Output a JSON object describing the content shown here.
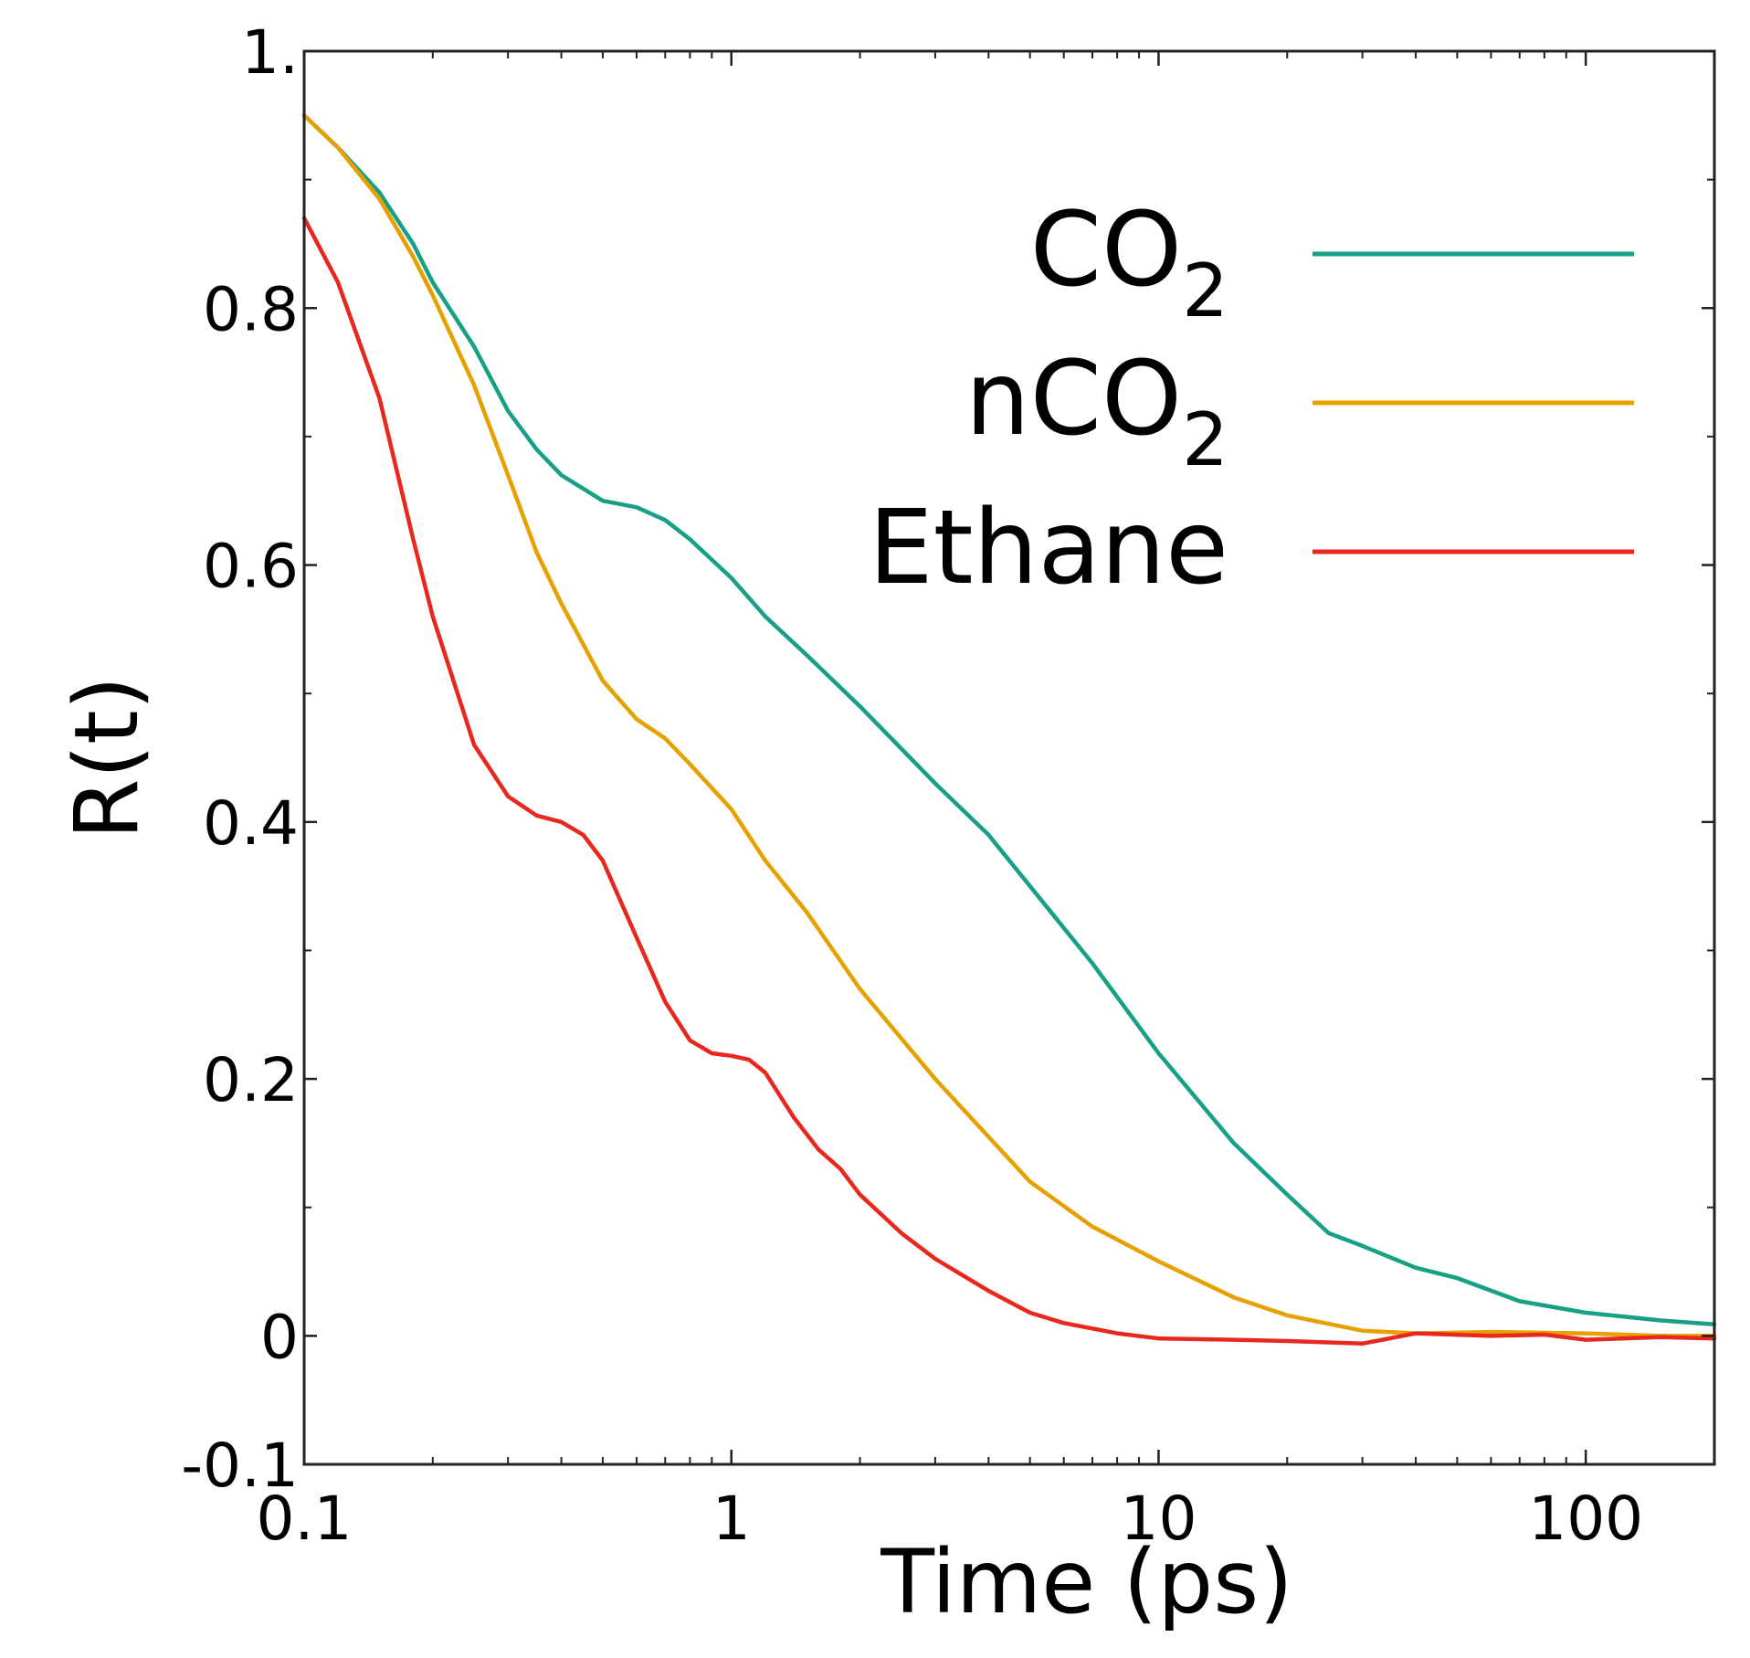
{
  "chart_data": {
    "type": "line",
    "title": "",
    "xlabel": "Time (ps)",
    "ylabel": "R(t)",
    "xscale": "log",
    "xlim": [
      0.1,
      200
    ],
    "ylim": [
      -0.1,
      1.0
    ],
    "x_ticks": [
      0.1,
      1,
      10,
      100
    ],
    "x_tick_labels": [
      "0.1",
      "1",
      "10",
      "100"
    ],
    "y_ticks": [
      -0.1,
      0,
      0.2,
      0.4,
      0.6,
      0.8,
      1.0
    ],
    "y_tick_labels": [
      "-0.1",
      "0",
      "0.2",
      "0.4",
      "0.6",
      "0.8",
      "1."
    ],
    "grid": false,
    "legend_position": "top-right",
    "series": [
      {
        "name": "CO",
        "name_subscript": "2",
        "color": "#16a085",
        "points": [
          [
            0.1,
            0.95
          ],
          [
            0.12,
            0.925
          ],
          [
            0.15,
            0.89
          ],
          [
            0.18,
            0.85
          ],
          [
            0.2,
            0.82
          ],
          [
            0.25,
            0.77
          ],
          [
            0.3,
            0.72
          ],
          [
            0.35,
            0.69
          ],
          [
            0.4,
            0.67
          ],
          [
            0.5,
            0.65
          ],
          [
            0.6,
            0.645
          ],
          [
            0.7,
            0.635
          ],
          [
            0.8,
            0.62
          ],
          [
            1.0,
            0.59
          ],
          [
            1.2,
            0.56
          ],
          [
            1.5,
            0.53
          ],
          [
            2.0,
            0.49
          ],
          [
            3.0,
            0.43
          ],
          [
            4.0,
            0.39
          ],
          [
            5.0,
            0.35
          ],
          [
            7.0,
            0.29
          ],
          [
            10.0,
            0.22
          ],
          [
            15.0,
            0.15
          ],
          [
            20.0,
            0.11
          ],
          [
            25.0,
            0.08
          ],
          [
            30.0,
            0.07
          ],
          [
            40.0,
            0.053
          ],
          [
            50.0,
            0.045
          ],
          [
            70.0,
            0.027
          ],
          [
            100.0,
            0.018
          ],
          [
            150.0,
            0.012
          ],
          [
            200.0,
            0.009
          ]
        ]
      },
      {
        "name": "nCO",
        "name_subscript": "2",
        "color": "#e6a100",
        "points": [
          [
            0.1,
            0.95
          ],
          [
            0.12,
            0.925
          ],
          [
            0.15,
            0.885
          ],
          [
            0.18,
            0.84
          ],
          [
            0.2,
            0.81
          ],
          [
            0.25,
            0.74
          ],
          [
            0.3,
            0.67
          ],
          [
            0.35,
            0.61
          ],
          [
            0.4,
            0.57
          ],
          [
            0.5,
            0.51
          ],
          [
            0.6,
            0.48
          ],
          [
            0.7,
            0.465
          ],
          [
            0.8,
            0.445
          ],
          [
            1.0,
            0.41
          ],
          [
            1.2,
            0.37
          ],
          [
            1.5,
            0.33
          ],
          [
            2.0,
            0.27
          ],
          [
            3.0,
            0.2
          ],
          [
            5.0,
            0.12
          ],
          [
            7.0,
            0.085
          ],
          [
            10.0,
            0.058
          ],
          [
            15.0,
            0.03
          ],
          [
            20.0,
            0.016
          ],
          [
            30.0,
            0.004
          ],
          [
            40.0,
            0.002
          ],
          [
            60.0,
            0.003
          ],
          [
            100.0,
            0.002
          ],
          [
            150.0,
            0.0
          ],
          [
            200.0,
            0.0
          ]
        ]
      },
      {
        "name": "Ethane",
        "name_subscript": "",
        "color": "#e8281e",
        "points": [
          [
            0.1,
            0.87
          ],
          [
            0.12,
            0.82
          ],
          [
            0.15,
            0.73
          ],
          [
            0.18,
            0.62
          ],
          [
            0.2,
            0.56
          ],
          [
            0.25,
            0.46
          ],
          [
            0.3,
            0.42
          ],
          [
            0.35,
            0.405
          ],
          [
            0.4,
            0.4
          ],
          [
            0.45,
            0.39
          ],
          [
            0.5,
            0.37
          ],
          [
            0.6,
            0.31
          ],
          [
            0.7,
            0.26
          ],
          [
            0.8,
            0.23
          ],
          [
            0.9,
            0.22
          ],
          [
            1.0,
            0.218
          ],
          [
            1.1,
            0.215
          ],
          [
            1.2,
            0.205
          ],
          [
            1.4,
            0.17
          ],
          [
            1.6,
            0.145
          ],
          [
            1.8,
            0.13
          ],
          [
            2.0,
            0.11
          ],
          [
            2.5,
            0.08
          ],
          [
            3.0,
            0.06
          ],
          [
            4.0,
            0.035
          ],
          [
            5.0,
            0.018
          ],
          [
            6.0,
            0.01
          ],
          [
            8.0,
            0.002
          ],
          [
            10.0,
            -0.002
          ],
          [
            15.0,
            -0.003
          ],
          [
            20.0,
            -0.004
          ],
          [
            30.0,
            -0.006
          ],
          [
            40.0,
            0.002
          ],
          [
            60.0,
            0.0
          ],
          [
            80.0,
            0.001
          ],
          [
            100.0,
            -0.003
          ],
          [
            150.0,
            -0.001
          ],
          [
            200.0,
            -0.002
          ]
        ]
      }
    ]
  }
}
